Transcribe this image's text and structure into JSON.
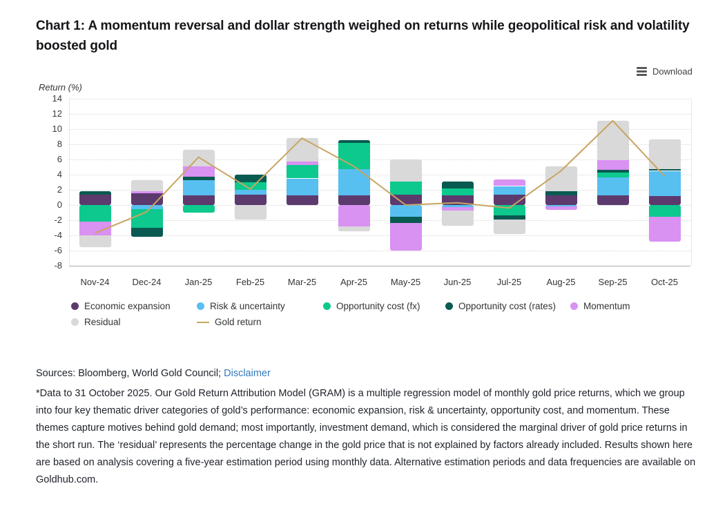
{
  "page": {
    "title": "Chart 1: A momentum reversal and dollar strength weighed on returns while geopolitical risk and volatility boosted gold",
    "download_label": "Download",
    "sources_prefix": "Sources: Bloomberg, World Gold Council; ",
    "disclaimer_link": "Disclaimer",
    "footnote": "*Data to 31 October 2025. Our Gold Return Attribution Model (GRAM) is a multiple regression model of monthly gold price returns, which we group into four key thematic driver categories of gold’s performance: economic expansion, risk & uncertainty, opportunity cost, and momentum. These themes capture motives behind gold demand; most importantly, investment demand, which is considered the marginal driver of gold price returns in the short run. The ‘residual’ represents the percentage change in the gold price that is not explained by factors already included. Results shown here are based on analysis covering a five-year estimation period using monthly data. Alternative estimation periods and data frequencies are available on Goldhub.com."
  },
  "chart_data": {
    "type": "bar",
    "subtype": "stacked-column-with-line",
    "title": "Chart 1: A momentum reversal and dollar strength weighed on returns while geopolitical risk and volatility boosted gold",
    "ylabel": "Return (%)",
    "xlabel": "",
    "ylim": [
      -8,
      14
    ],
    "ytick_step": 2,
    "grid": "horizontal-dotted",
    "legend_position": "bottom",
    "categories": [
      "Nov-24",
      "Dec-24",
      "Jan-25",
      "Feb-25",
      "Mar-25",
      "Apr-25",
      "May-25",
      "Jun-25",
      "Jul-25",
      "Aug-25",
      "Sep-25",
      "Oct-25"
    ],
    "series": [
      {
        "name": "Economic expansion",
        "color": "#5c3a6e",
        "values": [
          1.4,
          1.5,
          1.3,
          1.4,
          1.3,
          1.3,
          1.4,
          1.3,
          1.4,
          1.3,
          1.3,
          1.2
        ]
      },
      {
        "name": "Risk & uncertainty",
        "color": "#58bff1",
        "values": [
          0,
          -0.5,
          2.0,
          0.6,
          2.2,
          3.4,
          -1.5,
          -0.25,
          1.1,
          -0.2,
          2.3,
          3.3
        ]
      },
      {
        "name": "Opportunity cost (fx)",
        "color": "#0dc98d",
        "values": [
          -2.2,
          -2.5,
          -1.0,
          1.0,
          1.75,
          3.5,
          1.7,
          0.85,
          -1.4,
          0,
          0.7,
          -1.5
        ]
      },
      {
        "name": "Opportunity cost (rates)",
        "color": "#095a50",
        "values": [
          0.4,
          -1.2,
          0.4,
          1.0,
          0,
          0.35,
          -0.9,
          0.9,
          -0.5,
          0.55,
          0.3,
          0.2
        ]
      },
      {
        "name": "Momentum",
        "color": "#d991f2",
        "values": [
          -1.8,
          0.3,
          1.4,
          0,
          0.45,
          -2.85,
          -3.6,
          -0.5,
          0.9,
          -0.4,
          1.3,
          -3.3
        ]
      },
      {
        "name": "Residual",
        "color": "#d9d9d9",
        "values": [
          -1.5,
          1.5,
          2.2,
          -1.9,
          3.1,
          -0.6,
          2.9,
          -2.0,
          -1.9,
          3.25,
          5.2,
          3.9
        ]
      }
    ],
    "line_series": {
      "name": "Gold return",
      "color": "#c8a562",
      "values": [
        -3.7,
        -0.9,
        6.3,
        2.1,
        8.8,
        5.1,
        0.0,
        0.3,
        -0.4,
        4.5,
        11.1,
        3.8
      ]
    }
  }
}
